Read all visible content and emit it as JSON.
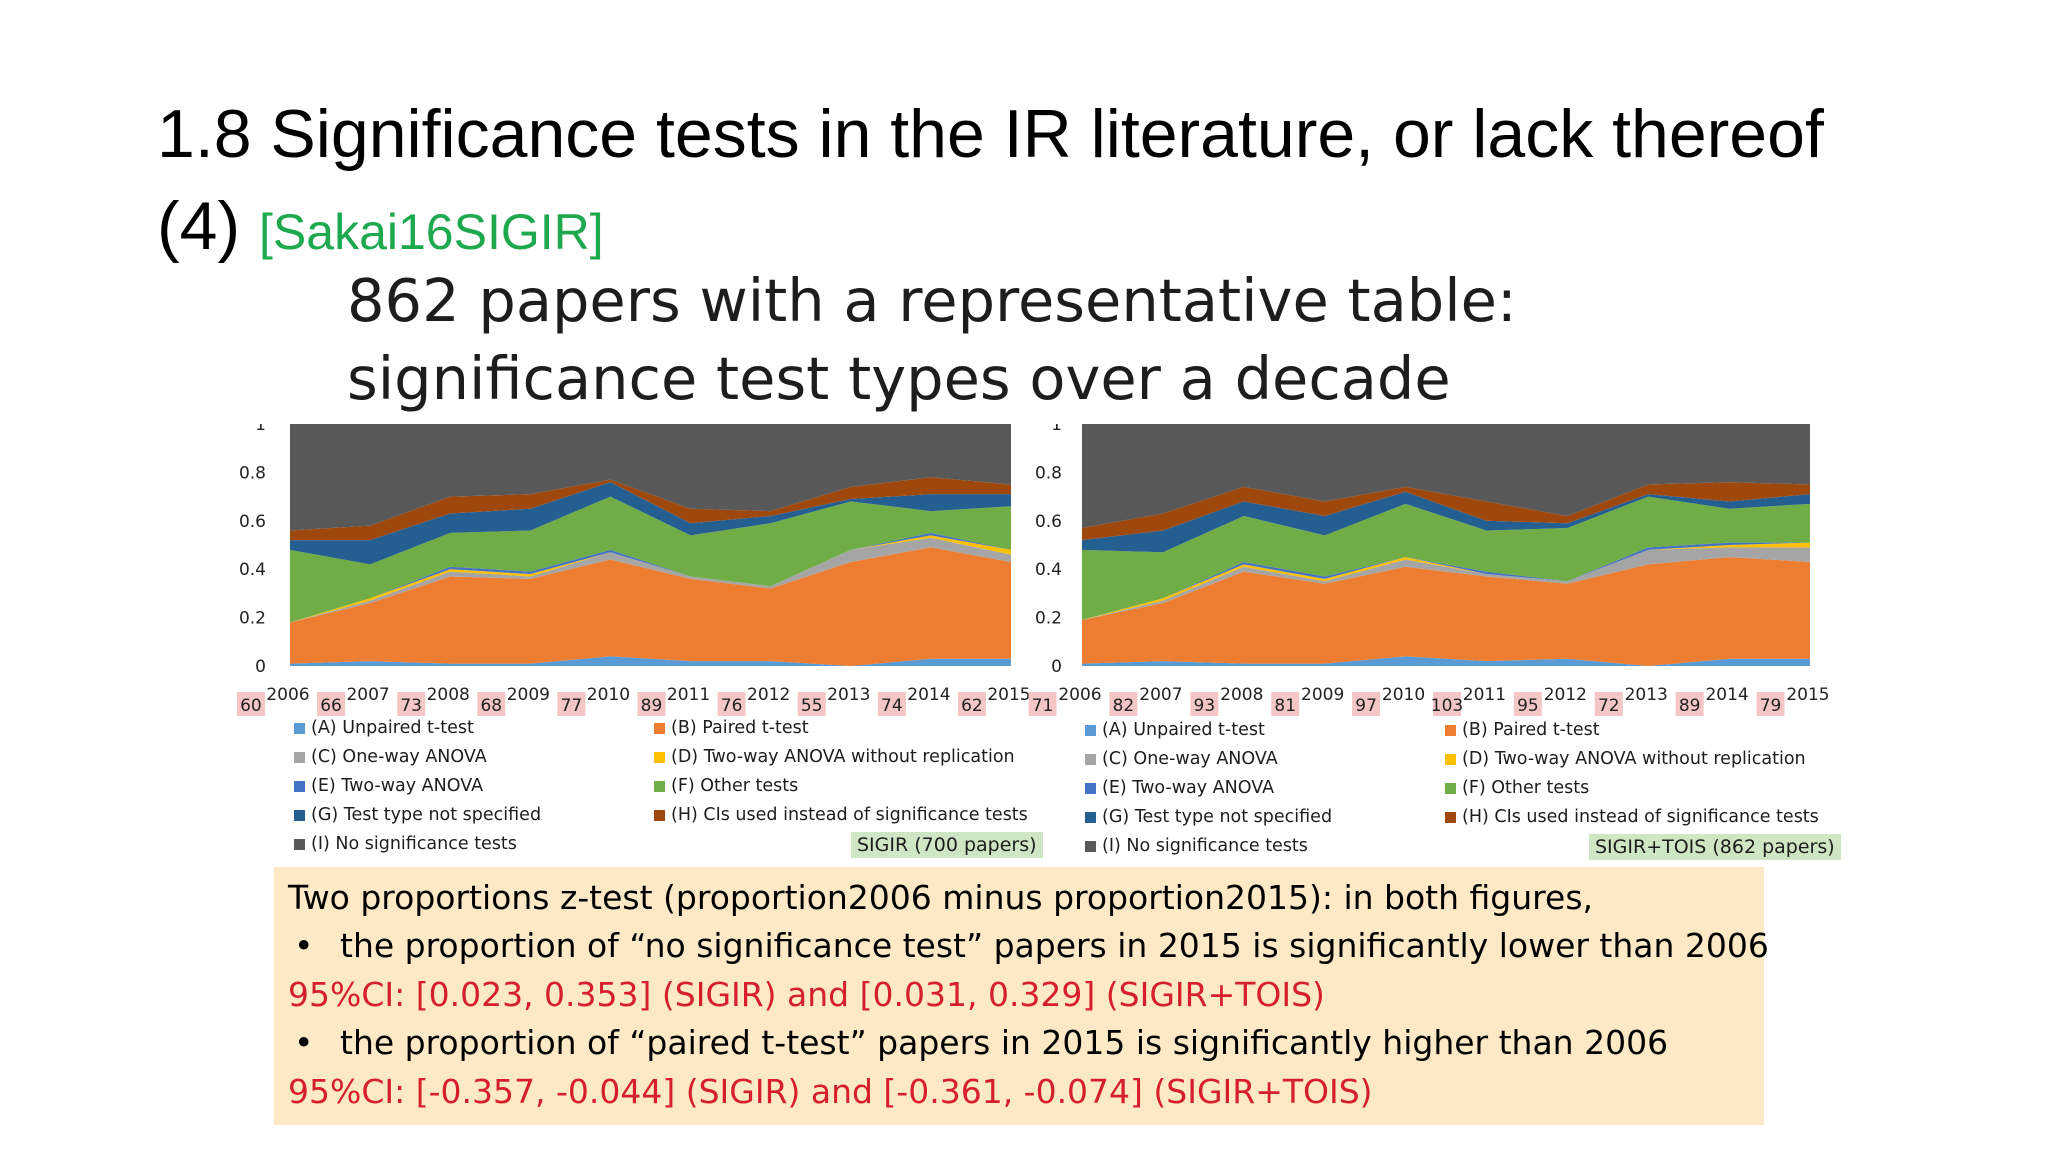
{
  "slide": {
    "title": "1.8 Significance tests in the IR literature, or lack thereof",
    "title_line2": "(4)",
    "citation": "[Sakai16SIGIR]"
  },
  "figure": {
    "heading_line1": "862 papers with a representative table:",
    "heading_line2": "significance test types over a decade"
  },
  "colors": {
    "A": "#5b9bd5",
    "B": "#ed7d31",
    "C": "#a5a5a5",
    "D": "#ffc000",
    "E": "#4472c4",
    "F": "#70ad47",
    "G": "#255e91",
    "H": "#9e480e",
    "I": "#595959",
    "badge": "#f4c6c6",
    "tag": "#cfe6c4",
    "box": "#fde9c6",
    "red": "#d61f2c"
  },
  "legend": [
    {
      "key": "A",
      "label": "(A) Unpaired t-test"
    },
    {
      "key": "B",
      "label": "(B) Paired t-test"
    },
    {
      "key": "C",
      "label": "(C) One-way ANOVA"
    },
    {
      "key": "D",
      "label": "(D) Two-way ANOVA without replication"
    },
    {
      "key": "E",
      "label": "(E) Two-way ANOVA"
    },
    {
      "key": "F",
      "label": "(F) Other tests"
    },
    {
      "key": "G",
      "label": "(G) Test type not specified"
    },
    {
      "key": "H",
      "label": "(H) CIs used instead of significance tests"
    },
    {
      "key": "I",
      "label": "(I) No significance tests"
    }
  ],
  "chart_data": [
    {
      "type": "area",
      "stacked": true,
      "tag": "SIGIR (700 papers)",
      "x": [
        "2006",
        "2007",
        "2008",
        "2009",
        "2010",
        "2011",
        "2012",
        "2013",
        "2014",
        "2015"
      ],
      "counts": [
        "60",
        "66",
        "73",
        "68",
        "77",
        "89",
        "76",
        "55",
        "74",
        "62"
      ],
      "yticks": [
        "0",
        "0.2",
        "0.4",
        "0.6",
        "0.8",
        "1"
      ],
      "ylim": [
        0,
        1
      ],
      "series": [
        {
          "key": "A",
          "values": [
            0.01,
            0.02,
            0.01,
            0.01,
            0.04,
            0.02,
            0.02,
            0.0,
            0.03,
            0.03
          ]
        },
        {
          "key": "B",
          "values": [
            0.17,
            0.24,
            0.36,
            0.35,
            0.4,
            0.34,
            0.3,
            0.43,
            0.46,
            0.4
          ]
        },
        {
          "key": "C",
          "values": [
            0.0,
            0.01,
            0.02,
            0.01,
            0.03,
            0.01,
            0.01,
            0.05,
            0.04,
            0.03
          ]
        },
        {
          "key": "D",
          "values": [
            0.0,
            0.01,
            0.01,
            0.01,
            0.0,
            0.0,
            0.0,
            0.0,
            0.01,
            0.02
          ]
        },
        {
          "key": "E",
          "values": [
            0.0,
            0.0,
            0.01,
            0.01,
            0.01,
            0.0,
            0.0,
            0.0,
            0.01,
            0.0
          ]
        },
        {
          "key": "F",
          "values": [
            0.3,
            0.14,
            0.14,
            0.17,
            0.22,
            0.17,
            0.26,
            0.2,
            0.09,
            0.18
          ]
        },
        {
          "key": "G",
          "values": [
            0.04,
            0.1,
            0.08,
            0.09,
            0.06,
            0.05,
            0.03,
            0.01,
            0.07,
            0.05
          ]
        },
        {
          "key": "H",
          "values": [
            0.04,
            0.06,
            0.07,
            0.06,
            0.01,
            0.06,
            0.02,
            0.05,
            0.07,
            0.04
          ]
        },
        {
          "key": "I",
          "values": [
            0.44,
            0.42,
            0.3,
            0.29,
            0.23,
            0.35,
            0.36,
            0.26,
            0.22,
            0.25
          ]
        }
      ]
    },
    {
      "type": "area",
      "stacked": true,
      "tag": "SIGIR+TOIS (862 papers)",
      "x": [
        "2006",
        "2007",
        "2008",
        "2009",
        "2010",
        "2011",
        "2012",
        "2013",
        "2014",
        "2015"
      ],
      "counts": [
        "71",
        "82",
        "93",
        "81",
        "97",
        "103",
        "95",
        "72",
        "89",
        "79"
      ],
      "yticks": [
        "0",
        "0.2",
        "0.4",
        "0.6",
        "0.8",
        "1"
      ],
      "ylim": [
        0,
        1
      ],
      "series": [
        {
          "key": "A",
          "values": [
            0.01,
            0.02,
            0.01,
            0.01,
            0.04,
            0.02,
            0.03,
            0.0,
            0.03,
            0.03
          ]
        },
        {
          "key": "B",
          "values": [
            0.18,
            0.24,
            0.38,
            0.33,
            0.37,
            0.35,
            0.31,
            0.42,
            0.42,
            0.4
          ]
        },
        {
          "key": "C",
          "values": [
            0.0,
            0.01,
            0.02,
            0.01,
            0.03,
            0.01,
            0.01,
            0.06,
            0.04,
            0.06
          ]
        },
        {
          "key": "D",
          "values": [
            0.0,
            0.01,
            0.01,
            0.01,
            0.01,
            0.0,
            0.0,
            0.0,
            0.01,
            0.02
          ]
        },
        {
          "key": "E",
          "values": [
            0.0,
            0.0,
            0.01,
            0.01,
            0.0,
            0.01,
            0.0,
            0.01,
            0.01,
            0.0
          ]
        },
        {
          "key": "F",
          "values": [
            0.29,
            0.19,
            0.19,
            0.17,
            0.22,
            0.17,
            0.22,
            0.21,
            0.14,
            0.16
          ]
        },
        {
          "key": "G",
          "values": [
            0.04,
            0.09,
            0.06,
            0.08,
            0.05,
            0.04,
            0.02,
            0.01,
            0.03,
            0.04
          ]
        },
        {
          "key": "H",
          "values": [
            0.05,
            0.07,
            0.06,
            0.06,
            0.02,
            0.08,
            0.03,
            0.04,
            0.08,
            0.04
          ]
        },
        {
          "key": "I",
          "values": [
            0.43,
            0.37,
            0.26,
            0.32,
            0.26,
            0.32,
            0.38,
            0.25,
            0.24,
            0.25
          ]
        }
      ]
    }
  ],
  "summary": {
    "intro": "Two proportions z-test (proportion2006 minus proportion2015): in both figures,",
    "bullet": "•",
    "point1": "the proportion of “no significance test” papers in 2015 is significantly lower than 2006",
    "ci1": "95%CI: [0.023, 0.353] (SIGIR) and [0.031, 0.329] (SIGIR+TOIS)",
    "point2": "the proportion of “paired t-test” papers in 2015 is significantly higher than 2006",
    "ci2": "95%CI: [-0.357, -0.044] (SIGIR) and [-0.361, -0.074] (SIGIR+TOIS)"
  }
}
